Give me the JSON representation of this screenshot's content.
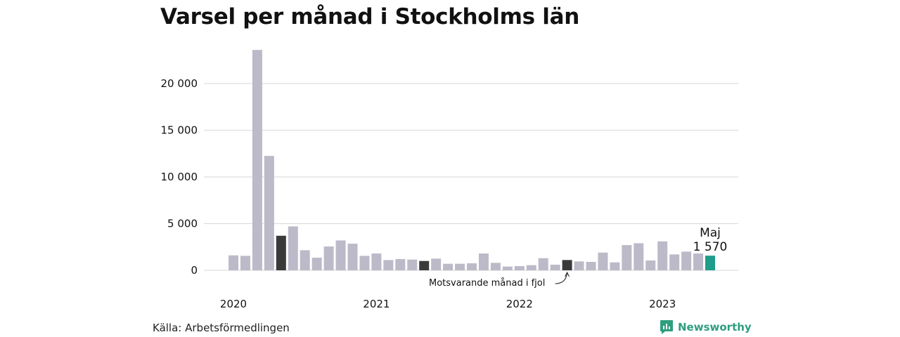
{
  "title": "Varsel per månad i Stockholms län",
  "source": "Källa: Arbetsförmedlingen",
  "brand": "Newsworthy",
  "colors": {
    "bar": "#bcbac8",
    "comparison": "#3a3a3a",
    "current": "#1f9c8a",
    "grid": "#dddddd",
    "brand": "#2e9e7e"
  },
  "chart_data": {
    "type": "bar",
    "title": "Varsel per månad i Stockholms län",
    "ylim": [
      0,
      24000
    ],
    "yticks": [
      0,
      5000,
      10000,
      15000,
      20000
    ],
    "ytick_labels": [
      "0",
      "5 000",
      "10 000",
      "15 000",
      "20 000"
    ],
    "xtick_labels": [
      "2020",
      "2021",
      "2022",
      "2023"
    ],
    "grid": true,
    "categories": [
      "2020-01",
      "2020-02",
      "2020-03",
      "2020-04",
      "2020-05",
      "2020-06",
      "2020-07",
      "2020-08",
      "2020-09",
      "2020-10",
      "2020-11",
      "2020-12",
      "2021-01",
      "2021-02",
      "2021-03",
      "2021-04",
      "2021-05",
      "2021-06",
      "2021-07",
      "2021-08",
      "2021-09",
      "2021-10",
      "2021-11",
      "2021-12",
      "2022-01",
      "2022-02",
      "2022-03",
      "2022-04",
      "2022-05",
      "2022-06",
      "2022-07",
      "2022-08",
      "2022-09",
      "2022-10",
      "2022-11",
      "2022-12",
      "2023-01",
      "2023-02",
      "2023-03",
      "2023-04",
      "2023-05"
    ],
    "values": [
      1600,
      1550,
      23600,
      12250,
      3700,
      4700,
      2150,
      1350,
      2550,
      3200,
      2850,
      1550,
      1800,
      1100,
      1200,
      1150,
      1000,
      1250,
      700,
      700,
      750,
      1800,
      800,
      400,
      450,
      550,
      1300,
      600,
      1100,
      950,
      900,
      1900,
      850,
      2700,
      2900,
      1050,
      3100,
      1700,
      2000,
      1800,
      1570
    ],
    "highlight_comparison": [
      4,
      16,
      28
    ],
    "highlight_current": 40,
    "annotations": {
      "comparison_label": "Motsvarande månad i fjol",
      "current_month": "Maj",
      "current_value": "1 570"
    }
  }
}
